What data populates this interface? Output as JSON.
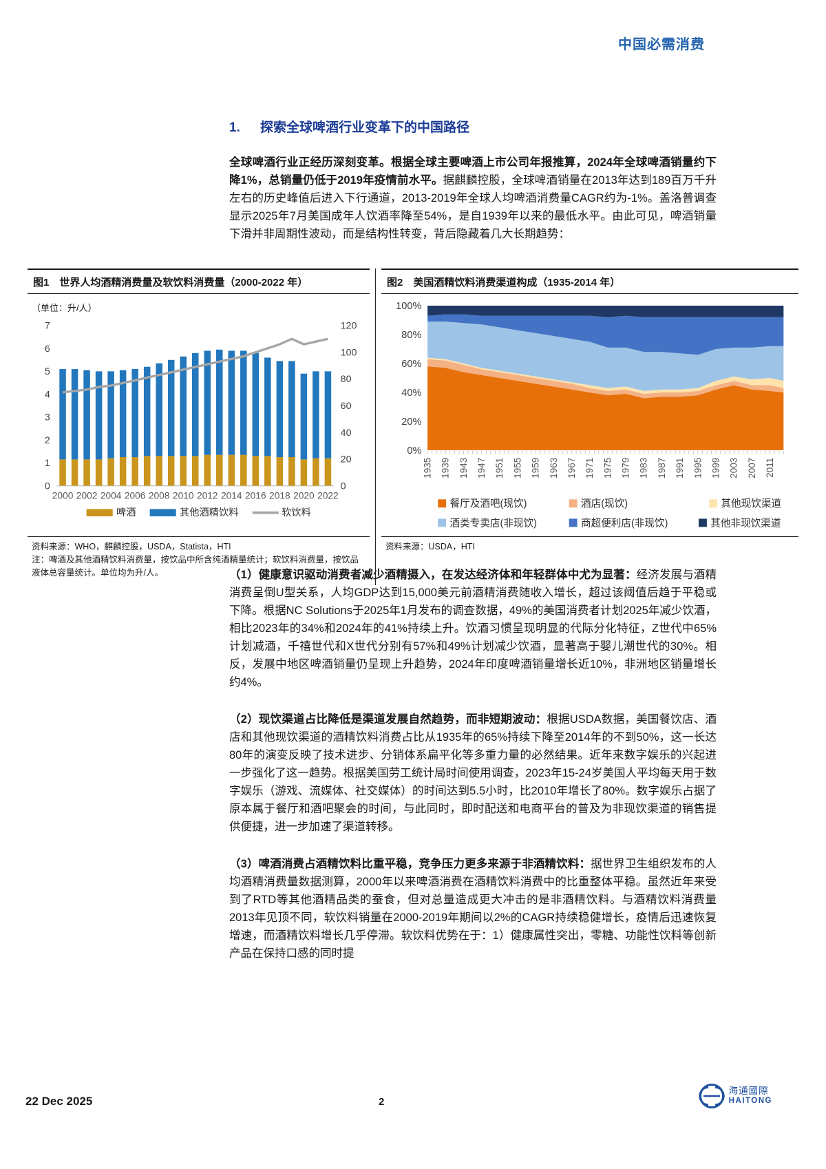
{
  "page": {
    "brand": "中国必需消费",
    "footer_date": "22 Dec 2025",
    "footer_page": "2",
    "logo_cn": "海通國際",
    "logo_en": "HAITONG"
  },
  "section": {
    "number": "1.",
    "title": "探索全球啤酒行业变革下的中国路径"
  },
  "intro": {
    "lead": "全球啤酒行业正经历深刻变革。根据全球主要啤酒上市公司年报推算，2024年全球啤酒销量约下降1%，总销量仍低于2019年疫情前水平。",
    "body": "据麒麟控股，全球啤酒销量在2013年达到189百万千升左右的历史峰值后进入下行通道，2013-2019年全球人均啤酒消费量CAGR约为-1%。盖洛普调查显示2025年7月美国成年人饮酒率降至54%，是自1939年以来的最低水平。由此可见，啤酒销量下滑并非周期性波动，而是结构性转变，背后隐藏着几大长期趋势："
  },
  "figure1": {
    "title": "图1　世界人均酒精消费量及软饮料消费量（2000-2022 年）",
    "unit": "（单位：升/人）",
    "source": "资料来源：WHO，麒麟控股，USDA，Statista，HTI",
    "note": "注：啤酒及其他酒精饮料消费量，按饮品中所含纯酒精量统计；软饮料消费量，按饮品液体总容量统计。单位均为升/人。"
  },
  "figure2": {
    "title": "图2　美国酒精饮料消费渠道构成（1935-2014 年）",
    "source": "资料来源：USDA，HTI"
  },
  "paragraphs": [
    {
      "lead": "（1）健康意识驱动消费者减少酒精摄入，在发达经济体和年轻群体中尤为显著：",
      "body": "经济发展与酒精消费呈倒U型关系，人均GDP达到15,000美元前酒精消费随收入增长，超过该阈值后趋于平稳或下降。根据NC Solutions于2025年1月发布的调查数据，49%的美国消费者计划2025年减少饮酒，相比2023年的34%和2024年的41%持续上升。饮酒习惯呈现明显的代际分化特征，Z世代中65%计划减酒，千禧世代和X世代分别有57%和49%计划减少饮酒，显著高于婴儿潮世代的30%。相反，发展中地区啤酒销量仍呈现上升趋势，2024年印度啤酒销量增长近10%，非洲地区销量增长约4%。"
    },
    {
      "lead": "（2）现饮渠道占比降低是渠道发展自然趋势，而非短期波动：",
      "body": "根据USDA数据，美国餐饮店、酒店和其他现饮渠道的酒精饮料消费占比从1935年的65%持续下降至2014年的不到50%，这一长达80年的演变反映了技术进步、分销体系扁平化等多重力量的必然结果。近年来数字娱乐的兴起进一步强化了这一趋势。根据美国劳工统计局时间使用调查，2023年15-24岁美国人平均每天用于数字娱乐（游戏、流媒体、社交媒体）的时间达到5.5小时，比2010年增长了80%。数字娱乐占据了原本属于餐厅和酒吧聚会的时间，与此同时，即时配送和电商平台的普及为非现饮渠道的销售提供便捷，进一步加速了渠道转移。"
    },
    {
      "lead": "（3）啤酒消费占酒精饮料比重平稳，竞争压力更多来源于非酒精饮料：",
      "body": "据世界卫生组织发布的人均酒精消费量数据测算，2000年以来啤酒消费在酒精饮料消费中的比重整体平稳。虽然近年来受到了RTD等其他酒精品类的蚕食，但对总量造成更大冲击的是非酒精饮料。与酒精饮料消费量2013年见顶不同，软饮料销量在2000-2019年期间以2%的CAGR持续稳健增长，疫情后迅速恢复增速，而酒精饮料增长几乎停滞。软饮料优势在于：1）健康属性突出，零糖、功能性饮料等创新产品在保持口感的同时提"
    }
  ],
  "chart_data": [
    {
      "type": "bar",
      "title": "世界人均酒精消费量及软饮料消费量（2000-2022年）",
      "unit": "升/人",
      "categories": [
        2000,
        2001,
        2002,
        2003,
        2004,
        2005,
        2006,
        2007,
        2008,
        2009,
        2010,
        2011,
        2012,
        2013,
        2014,
        2015,
        2016,
        2017,
        2018,
        2019,
        2020,
        2021,
        2022
      ],
      "series": [
        {
          "name": "啤酒",
          "kind": "bar-stack",
          "axis": "left",
          "color": "#C9951C",
          "values": [
            1.15,
            1.15,
            1.15,
            1.15,
            1.2,
            1.25,
            1.25,
            1.3,
            1.3,
            1.3,
            1.3,
            1.3,
            1.35,
            1.35,
            1.35,
            1.35,
            1.3,
            1.3,
            1.25,
            1.25,
            1.15,
            1.2,
            1.2
          ]
        },
        {
          "name": "其他酒精饮料",
          "kind": "bar-stack",
          "axis": "left",
          "color": "#2277BD",
          "values": [
            3.95,
            3.95,
            3.9,
            3.85,
            3.8,
            3.8,
            3.85,
            3.9,
            4.05,
            4.2,
            4.35,
            4.5,
            4.55,
            4.6,
            4.55,
            4.55,
            4.5,
            4.3,
            4.2,
            4.2,
            3.75,
            3.8,
            3.8
          ]
        },
        {
          "name": "软饮料",
          "kind": "line",
          "axis": "right",
          "color": "#A6A6A6",
          "values": [
            70,
            71,
            72,
            74,
            75,
            77,
            79,
            81,
            83,
            85,
            87,
            89,
            91,
            93,
            95,
            97,
            100,
            103,
            106,
            110,
            106,
            108,
            110
          ]
        }
      ],
      "left_axis": {
        "min": 0,
        "max": 7,
        "step": 1
      },
      "right_axis": {
        "min": 0,
        "max": 120,
        "step": 20
      },
      "xlabel_every": 2,
      "grid": false,
      "legend_position": "bottom"
    },
    {
      "type": "area",
      "title": "美国酒精饮料消费渠道构成（1935-2014年）",
      "stack_percent": true,
      "x": [
        1935,
        1939,
        1943,
        1947,
        1951,
        1955,
        1959,
        1963,
        1967,
        1971,
        1975,
        1979,
        1983,
        1987,
        1991,
        1995,
        1999,
        2003,
        2007,
        2011,
        2014
      ],
      "series": [
        {
          "name": "餐厅及酒吧(现饮)",
          "color": "#E8700A",
          "values": [
            58,
            57,
            54,
            52,
            50,
            48,
            46,
            44,
            42,
            40,
            38,
            39,
            36,
            37,
            37,
            38,
            42,
            45,
            42,
            41,
            40
          ]
        },
        {
          "name": "酒店(现饮)",
          "color": "#F4B183",
          "values": [
            5,
            5,
            5,
            4,
            4,
            4,
            4,
            4,
            4,
            3,
            3,
            3,
            3,
            3,
            3,
            3,
            3,
            3,
            3,
            4,
            3
          ]
        },
        {
          "name": "其他现饮渠道",
          "color": "#FFE3AC",
          "values": [
            1,
            1,
            1,
            1,
            1,
            1,
            1,
            1,
            1,
            2,
            2,
            2,
            2,
            2,
            2,
            2,
            3,
            3,
            4,
            5,
            5
          ]
        },
        {
          "name": "酒类专卖店(非现饮)",
          "color": "#9DC3E6",
          "values": [
            25,
            26,
            28,
            30,
            30,
            30,
            30,
            30,
            30,
            30,
            28,
            27,
            27,
            26,
            25,
            23,
            22,
            20,
            22,
            22,
            24
          ]
        },
        {
          "name": "商超便利店(非现饮)",
          "color": "#4472C4",
          "values": [
            4,
            5,
            6,
            6,
            8,
            10,
            12,
            14,
            16,
            18,
            21,
            22,
            24,
            24,
            25,
            26,
            22,
            21,
            21,
            20,
            20
          ]
        },
        {
          "name": "其他非现饮渠道",
          "color": "#1F3864",
          "values": [
            7,
            6,
            6,
            7,
            7,
            7,
            7,
            7,
            7,
            7,
            8,
            7,
            8,
            8,
            8,
            8,
            8,
            8,
            8,
            8,
            8
          ]
        }
      ],
      "y_axis": {
        "min": 0,
        "max": 100,
        "step": 20,
        "unit": "%"
      },
      "xtick_step": 4,
      "grid": false,
      "legend_position": "bottom"
    }
  ]
}
